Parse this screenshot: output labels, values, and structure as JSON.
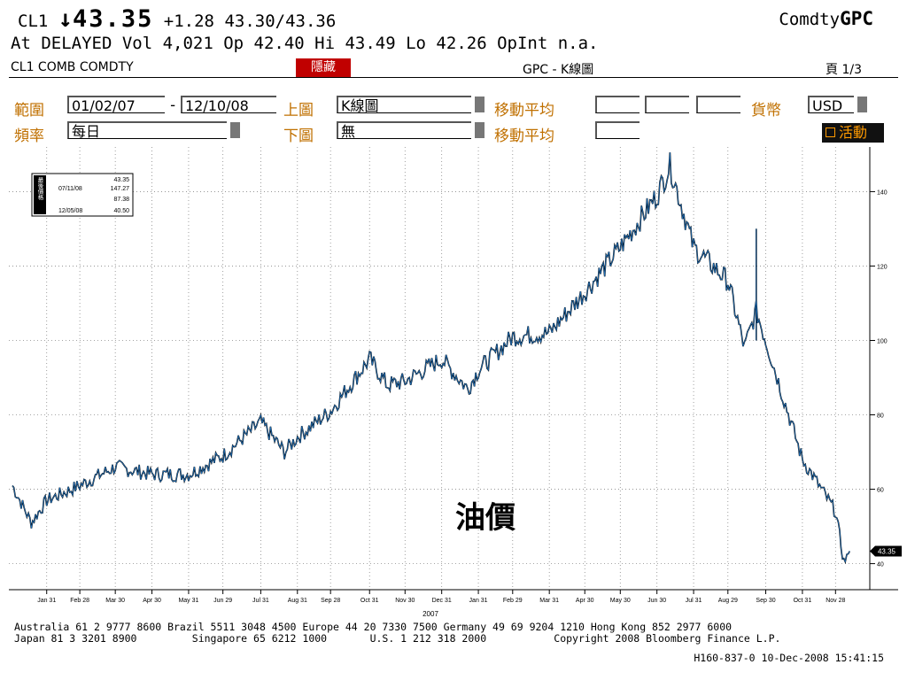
{
  "header": {
    "symbol": "CL1",
    "arrow": "↓",
    "last": "43.35",
    "change": "+1.28",
    "bid_ask": "43.30/43.36",
    "brand_prefix": "Comdty",
    "brand_suffix": "GPC",
    "line2": "At DELAYED Vol 4,021 Op 42.40 Hi 43.49 Lo 42.26 OpInt n.a."
  },
  "titlebar": {
    "security": "CL1 COMB COMDTY",
    "hide": "隱藏",
    "function": "GPC - K線圖",
    "page": "頁 1/3"
  },
  "form": {
    "range_label": "範圍",
    "date_from": "01/02/07",
    "dash": "-",
    "date_to": "12/10/08",
    "upper_label": "上圖",
    "upper_value": "K線圖",
    "ma_label": "移動平均",
    "currency_label": "貨幣",
    "currency_value": "USD",
    "freq_label": "頻率",
    "freq_value": "每日",
    "lower_label": "下圖",
    "lower_value": "無",
    "ma_label2": "移動平均",
    "active_label": "活動"
  },
  "chart_data": {
    "type": "line",
    "annotation": "油價",
    "last_tag": "43.35",
    "ylim": [
      33,
      152
    ],
    "yticks": [
      40,
      60,
      80,
      100,
      120,
      140
    ],
    "legend_box": {
      "labels_col": [
        "最後價格",
        "最高價於",
        "平均",
        "最低價於"
      ],
      "dates": [
        "",
        "07/11/08",
        "",
        "12/05/08"
      ],
      "values": [
        "43.35",
        "147.27",
        "87.38",
        "40.50"
      ]
    },
    "xticks": [
      "Jan 31",
      "Feb 28",
      "Mar 30",
      "Apr 30",
      "May 31",
      "Jun 29",
      "Jul 31",
      "Aug 31",
      "Sep 28",
      "Oct 31",
      "Nov 30",
      "Dec 31",
      "Jan 31",
      "Feb 29",
      "Mar 31",
      "Apr 30",
      "May 30",
      "Jun 30",
      "Jul 31",
      "Aug 29",
      "Sep 30",
      "Oct 31",
      "Nov 28"
    ],
    "xlabel_year": "2007",
    "x_dates": [
      "2007-01-02",
      "2007-01-18",
      "2007-01-31",
      "2007-02-28",
      "2007-03-30",
      "2007-04-30",
      "2007-05-31",
      "2007-06-29",
      "2007-07-31",
      "2007-08-20",
      "2007-08-31",
      "2007-09-28",
      "2007-10-31",
      "2007-11-15",
      "2007-11-30",
      "2007-12-31",
      "2008-01-22",
      "2008-01-31",
      "2008-02-29",
      "2008-03-31",
      "2008-04-30",
      "2008-05-30",
      "2008-06-30",
      "2008-07-11",
      "2008-07-31",
      "2008-08-29",
      "2008-09-12",
      "2008-09-22",
      "2008-09-30",
      "2008-10-31",
      "2008-11-28",
      "2008-12-05",
      "2008-12-10"
    ],
    "series": [
      {
        "values": [
          61,
          51,
          57,
          61,
          66,
          64,
          64,
          69,
          78,
          70,
          74,
          81,
          95,
          88,
          89,
          95,
          87,
          92,
          101,
          102,
          113,
          125,
          139,
          147,
          125,
          116,
          98,
          108,
          100,
          68,
          54,
          40.5,
          43.35
        ]
      }
    ]
  },
  "footer": {
    "line1": "Australia 61 2 9777 8600 Brazil 5511 3048 4500 Europe 44 20 7330 7500 Germany 49 69 9204 1210 Hong Kong 852 2977 6000",
    "line2": "Japan 81 3 3201 8900         Singapore 65 6212 1000       U.S. 1 212 318 2000           Copyright 2008 Bloomberg Finance L.P.",
    "line3": "H160-837-0 10-Dec-2008 15:41:15"
  }
}
